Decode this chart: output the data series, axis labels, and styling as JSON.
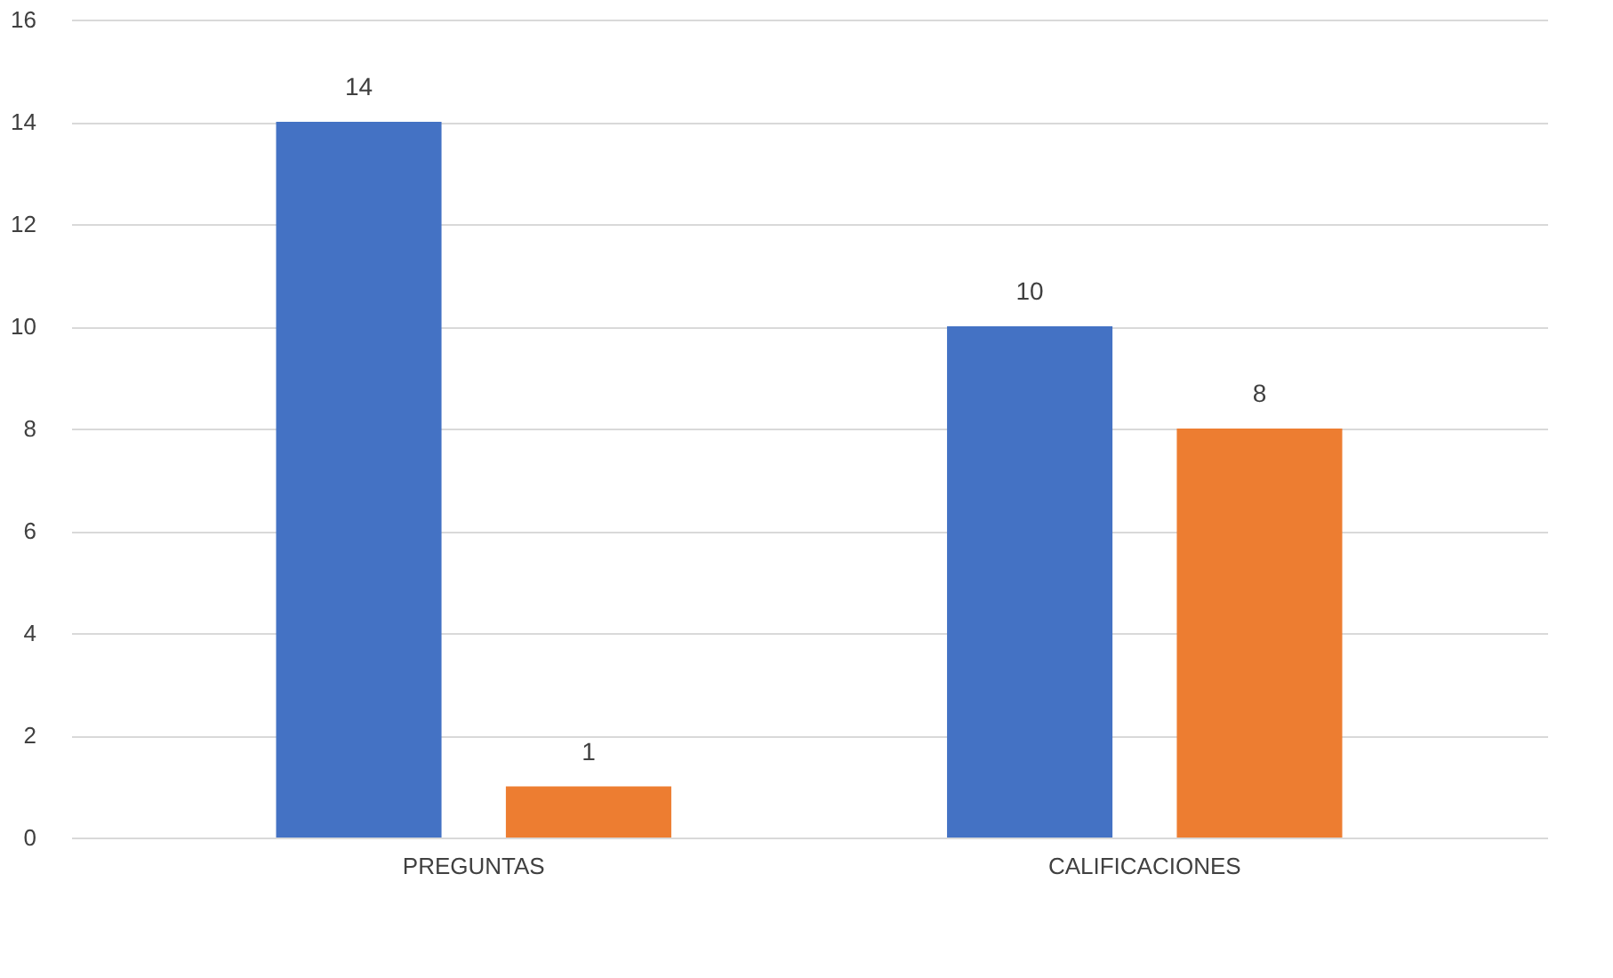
{
  "chart_data": {
    "type": "bar",
    "categories": [
      "PREGUNTAS",
      "CALIFICACIONES"
    ],
    "series": [
      {
        "color": "#4472c4",
        "values": [
          14,
          10
        ]
      },
      {
        "color": "#ed7d31",
        "values": [
          1,
          8
        ]
      }
    ],
    "ylim": [
      0,
      16
    ],
    "yticks": [
      0,
      2,
      4,
      6,
      8,
      10,
      12,
      14,
      16
    ],
    "grid": "y",
    "data_labels": true,
    "legend": false
  }
}
